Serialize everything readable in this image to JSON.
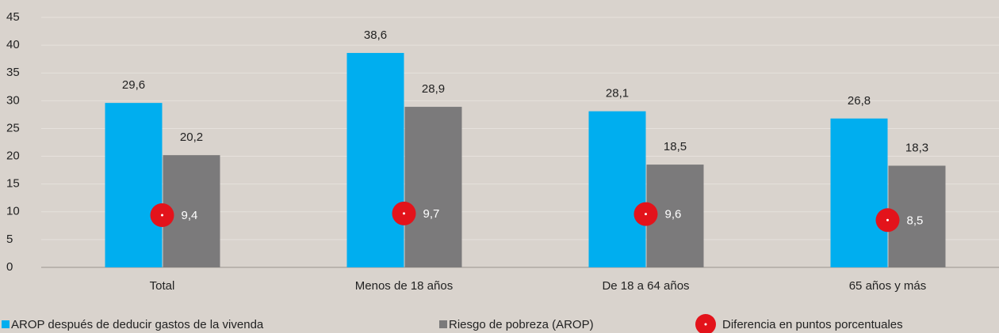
{
  "chart_data": {
    "type": "bar",
    "categories": [
      "Total",
      "Menos de 18 años",
      "De 18 a 64 años",
      "65 años y más"
    ],
    "series": [
      {
        "name": "AROP después de deducir gastos de la vivenda",
        "color": "#00aeef",
        "values": [
          29.6,
          38.6,
          28.1,
          26.8
        ],
        "value_labels": [
          "29,6",
          "38,6",
          "28,1",
          "26,8"
        ]
      },
      {
        "name": "Riesgo de pobreza (AROP)",
        "color": "#7b7a7b",
        "values": [
          20.2,
          28.9,
          18.5,
          18.3
        ],
        "value_labels": [
          "20,2",
          "28,9",
          "18,5",
          "18,3"
        ]
      },
      {
        "name": "Diferencia en puntos porcentuales",
        "color": "#e3131b",
        "marker": "dot",
        "values": [
          9.4,
          9.7,
          9.6,
          8.5
        ],
        "value_labels": [
          "9,4",
          "9,7",
          "9,6",
          "8,5"
        ]
      }
    ],
    "ylim": [
      0,
      45
    ],
    "yticks": [
      0,
      5,
      10,
      15,
      20,
      25,
      30,
      35,
      40,
      45
    ],
    "grid": true
  }
}
